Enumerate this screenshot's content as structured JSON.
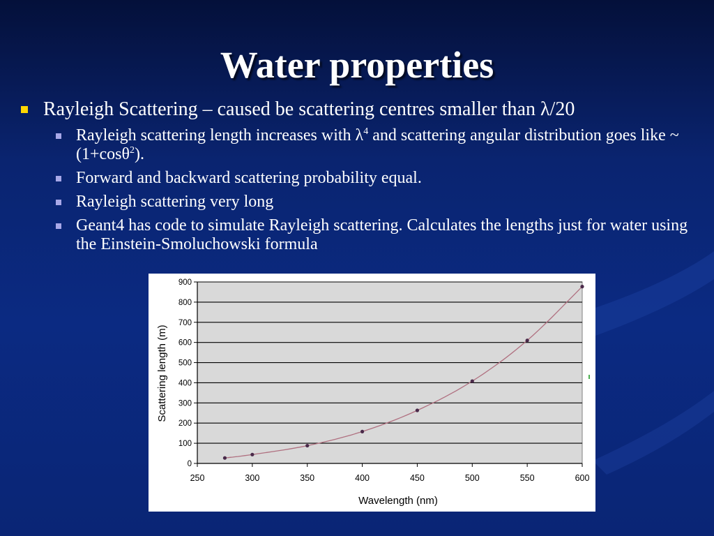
{
  "slide": {
    "title": "Water properties",
    "bullet": {
      "text": "Rayleigh Scattering – caused be scattering centres smaller than λ/20",
      "subbullets": [
        {
          "pre": "Rayleigh scattering length increases with λ",
          "sup1": "4",
          "mid": " and scattering angular distribution goes like ~(1+cosθ",
          "sup2": "2",
          "post": ")."
        },
        {
          "text": "Forward and backward scattering probability equal."
        },
        {
          "text": "Rayleigh scattering very long"
        },
        {
          "text": "Geant4 has code to simulate Rayleigh scattering. Calculates the lengths just for water using the Einstein-Smoluchowski formula"
        }
      ]
    },
    "colors": {
      "background": "#0b2a82",
      "bullet_primary": "#ffd700",
      "bullet_secondary": "#a8a8e8"
    }
  },
  "chart_data": {
    "type": "line",
    "xlabel": "Wavelength (nm)",
    "ylabel": "Scattering length (m)",
    "xlim": [
      250,
      600
    ],
    "ylim": [
      0,
      900
    ],
    "xticks": [
      250,
      300,
      350,
      400,
      450,
      500,
      550,
      600
    ],
    "yticks": [
      0,
      100,
      200,
      300,
      400,
      500,
      600,
      700,
      800,
      900
    ],
    "grid": "horizontal",
    "legend": "none",
    "series": [
      {
        "x": [
          275,
          300,
          350,
          400,
          450,
          500,
          550,
          600
        ],
        "y": [
          27,
          44,
          88,
          158,
          263,
          408,
          610,
          877
        ],
        "line_color": "#b07080",
        "marker_color": "#4a2a4a"
      }
    ],
    "plot_background": "#d9d9d9"
  }
}
